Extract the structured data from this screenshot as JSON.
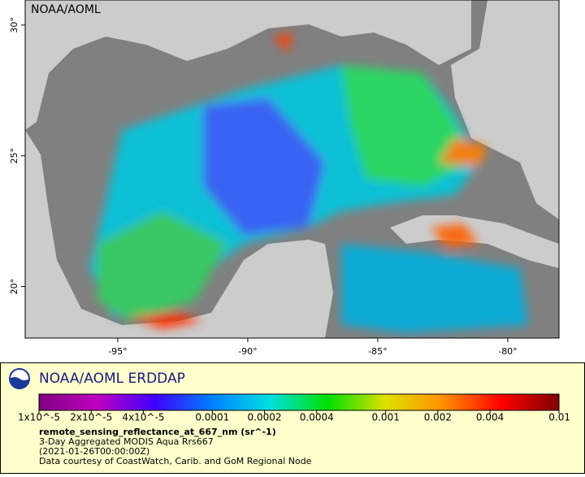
{
  "map": {
    "watermark": "NOAA/AOML",
    "lon_range": [
      -98.56,
      -78.03
    ],
    "lat_range": [
      18.03,
      30.96
    ],
    "lon_ticks": [
      {
        "value": -95,
        "label": "-95°"
      },
      {
        "value": -90,
        "label": "-90°"
      },
      {
        "value": -85,
        "label": "-85°"
      },
      {
        "value": -80,
        "label": "-80°"
      }
    ],
    "lat_ticks": [
      {
        "value": 30,
        "label": "30°"
      },
      {
        "value": 25,
        "label": "25°"
      },
      {
        "value": 20,
        "label": "20°"
      }
    ]
  },
  "legend": {
    "title": "NOAA/AOML ERDDAP",
    "colorbar_range": [
      1e-05,
      0.01
    ],
    "log_scale": true,
    "colormap": [
      "#800080",
      "#c000c0",
      "#4000ff",
      "#0080ff",
      "#00e0e0",
      "#00e000",
      "#e0e000",
      "#ff9000",
      "#ff0000",
      "#800000"
    ],
    "colorbar_ticks": [
      {
        "value": 1e-05,
        "label": "1x10^-5"
      },
      {
        "value": 2e-05,
        "label": "2x10^-5"
      },
      {
        "value": 4e-05,
        "label": "4x10^-5"
      },
      0.0001,
      0.0002,
      0.0004,
      0.001,
      0.002,
      0.004,
      0.01
    ],
    "variable": "remote_sensing_reflectance_at_667_nm (sr^-1)",
    "lines": [
      "3-Day Aggregated MODIS Aqua Rrs667",
      "(2021-01-26T00:00:00Z)",
      "Data courtesy of CoastWatch, Carib. and GoM Regional Node"
    ]
  }
}
